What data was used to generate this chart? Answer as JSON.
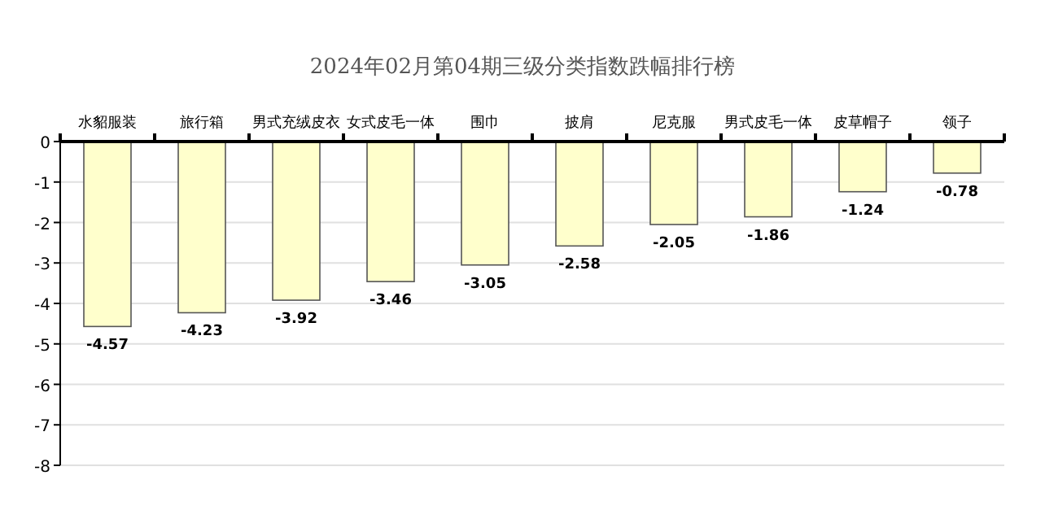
{
  "chart_data": {
    "type": "bar",
    "title": "2024年02月第04期三级分类指数跌幅排行榜",
    "categories": [
      "水貂服装",
      "旅行箱",
      "男式充绒皮衣",
      "女式皮毛一体",
      "围巾",
      "披肩",
      "尼克服",
      "男式皮毛一体",
      "皮草帽子",
      "领子"
    ],
    "values": [
      -4.57,
      -4.23,
      -3.92,
      -3.46,
      -3.05,
      -2.58,
      -2.05,
      -1.86,
      -1.24,
      -0.78
    ],
    "color": "#ffffcc",
    "ylim": [
      -8,
      0
    ],
    "yticks": [
      0,
      -1,
      -2,
      -3,
      -4,
      -5,
      -6,
      -7,
      -8
    ],
    "grid": "y",
    "data_labels": true
  }
}
